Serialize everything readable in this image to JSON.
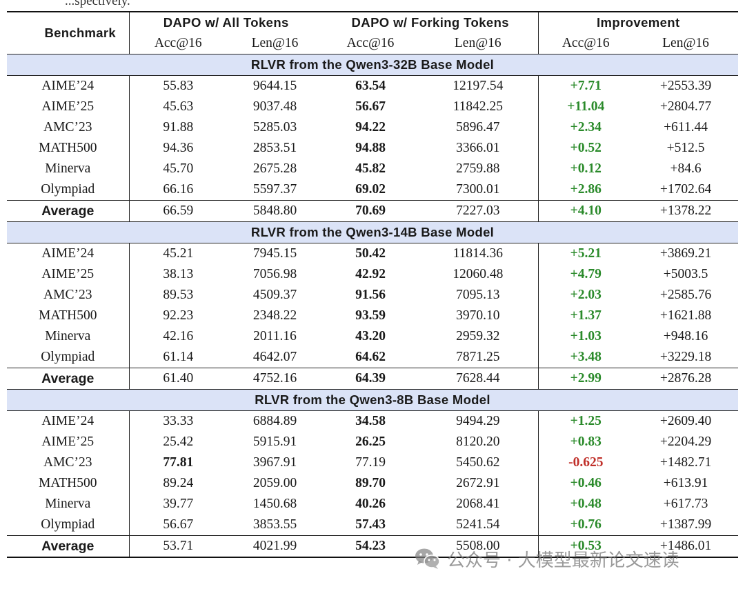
{
  "caption_fragment": "...spectively.",
  "header": {
    "benchmark": "Benchmark",
    "groups": [
      "DAPO w/ All Tokens",
      "DAPO w/ Forking Tokens",
      "Improvement"
    ],
    "subheaders": [
      "Acc@16",
      "Len@16",
      "Acc@16",
      "Len@16",
      "Acc@16",
      "Len@16"
    ]
  },
  "colors": {
    "section_bg": "#dbe3f7",
    "positive": "#2a8a2a",
    "negative": "#c0302a"
  },
  "sections": [
    {
      "title": "RLVR from the Qwen3-32B Base Model",
      "rows": [
        {
          "name": "AIME’24",
          "a": "55.83",
          "b": "9644.15",
          "c": "63.54",
          "d": "12197.54",
          "e": "+7.71",
          "f": "+2553.39"
        },
        {
          "name": "AIME’25",
          "a": "45.63",
          "b": "9037.48",
          "c": "56.67",
          "d": "11842.25",
          "e": "+11.04",
          "f": "+2804.77"
        },
        {
          "name": "AMC’23",
          "a": "91.88",
          "b": "5285.03",
          "c": "94.22",
          "d": "5896.47",
          "e": "+2.34",
          "f": "+611.44"
        },
        {
          "name": "MATH500",
          "a": "94.36",
          "b": "2853.51",
          "c": "94.88",
          "d": "3366.01",
          "e": "+0.52",
          "f": "+512.5"
        },
        {
          "name": "Minerva",
          "a": "45.70",
          "b": "2675.28",
          "c": "45.82",
          "d": "2759.88",
          "e": "+0.12",
          "f": "+84.6"
        },
        {
          "name": "Olympiad",
          "a": "66.16",
          "b": "5597.37",
          "c": "69.02",
          "d": "7300.01",
          "e": "+2.86",
          "f": "+1702.64"
        }
      ],
      "average": {
        "name": "Average",
        "a": "66.59",
        "b": "5848.80",
        "c": "70.69",
        "d": "7227.03",
        "e": "+4.10",
        "f": "+1378.22"
      }
    },
    {
      "title": "RLVR from the Qwen3-14B Base Model",
      "rows": [
        {
          "name": "AIME’24",
          "a": "45.21",
          "b": "7945.15",
          "c": "50.42",
          "d": "11814.36",
          "e": "+5.21",
          "f": "+3869.21"
        },
        {
          "name": "AIME’25",
          "a": "38.13",
          "b": "7056.98",
          "c": "42.92",
          "d": "12060.48",
          "e": "+4.79",
          "f": "+5003.5"
        },
        {
          "name": "AMC’23",
          "a": "89.53",
          "b": "4509.37",
          "c": "91.56",
          "d": "7095.13",
          "e": "+2.03",
          "f": "+2585.76"
        },
        {
          "name": "MATH500",
          "a": "92.23",
          "b": "2348.22",
          "c": "93.59",
          "d": "3970.10",
          "e": "+1.37",
          "f": "+1621.88"
        },
        {
          "name": "Minerva",
          "a": "42.16",
          "b": "2011.16",
          "c": "43.20",
          "d": "2959.32",
          "e": "+1.03",
          "f": "+948.16"
        },
        {
          "name": "Olympiad",
          "a": "61.14",
          "b": "4642.07",
          "c": "64.62",
          "d": "7871.25",
          "e": "+3.48",
          "f": "+3229.18"
        }
      ],
      "average": {
        "name": "Average",
        "a": "61.40",
        "b": "4752.16",
        "c": "64.39",
        "d": "7628.44",
        "e": "+2.99",
        "f": "+2876.28"
      }
    },
    {
      "title": "RLVR from the Qwen3-8B Base Model",
      "rows": [
        {
          "name": "AIME’24",
          "a": "33.33",
          "b": "6884.89",
          "c": "34.58",
          "d": "9494.29",
          "e": "+1.25",
          "f": "+2609.40"
        },
        {
          "name": "AIME’25",
          "a": "25.42",
          "b": "5915.91",
          "c": "26.25",
          "d": "8120.20",
          "e": "+0.83",
          "f": "+2204.29"
        },
        {
          "name": "AMC’23",
          "a": "77.81",
          "b": "3967.91",
          "c": "77.19",
          "d": "5450.62",
          "e": "-0.625",
          "f": "+1482.71",
          "bold_a": true
        },
        {
          "name": "MATH500",
          "a": "89.24",
          "b": "2059.00",
          "c": "89.70",
          "d": "2672.91",
          "e": "+0.46",
          "f": "+613.91"
        },
        {
          "name": "Minerva",
          "a": "39.77",
          "b": "1450.68",
          "c": "40.26",
          "d": "2068.41",
          "e": "+0.48",
          "f": "+617.73"
        },
        {
          "name": "Olympiad",
          "a": "56.67",
          "b": "3853.55",
          "c": "57.43",
          "d": "5241.54",
          "e": "+0.76",
          "f": "+1387.99"
        }
      ],
      "average": {
        "name": "Average",
        "a": "53.71",
        "b": "4021.99",
        "c": "54.23",
        "d": "5508.00",
        "e": "+0.53",
        "f": "+1486.01"
      }
    }
  ],
  "watermark": {
    "icon": "wechat-icon",
    "text": "公众号 · 大模型最新论文速读"
  }
}
